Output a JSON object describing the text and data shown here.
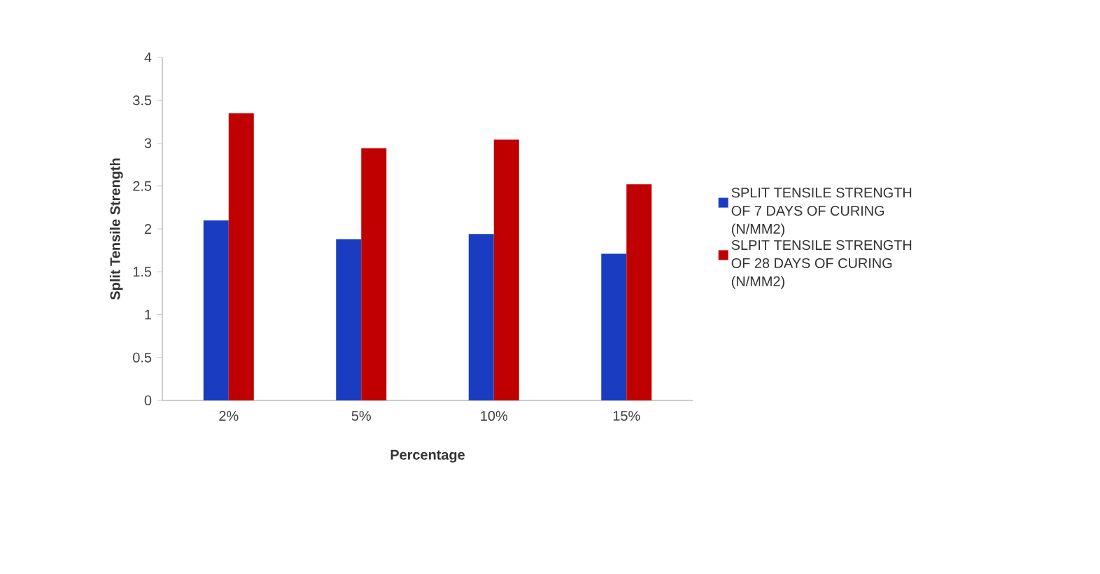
{
  "chart_data": {
    "type": "bar",
    "xlabel": "Percentage",
    "ylabel": "Split Tensile Strength",
    "categories": [
      "2%",
      "5%",
      "10%",
      "15%"
    ],
    "series": [
      {
        "name": "SPLIT TENSILE STRENGTH OF 7 DAYS OF CURING (N/MM2)",
        "color": "#1a3cc0",
        "values": [
          2.1,
          1.88,
          1.94,
          1.71
        ]
      },
      {
        "name": "SLPIT TENSILE STRENGTH OF 28 DAYS OF CURING (N/MM2)",
        "color": "#c00000",
        "values": [
          3.35,
          2.94,
          3.04,
          2.52
        ]
      }
    ],
    "ylim": [
      0,
      4
    ],
    "yticks": [
      0,
      0.5,
      1,
      1.5,
      2,
      2.5,
      3,
      3.5,
      4
    ],
    "grid": false,
    "legend": "right"
  }
}
